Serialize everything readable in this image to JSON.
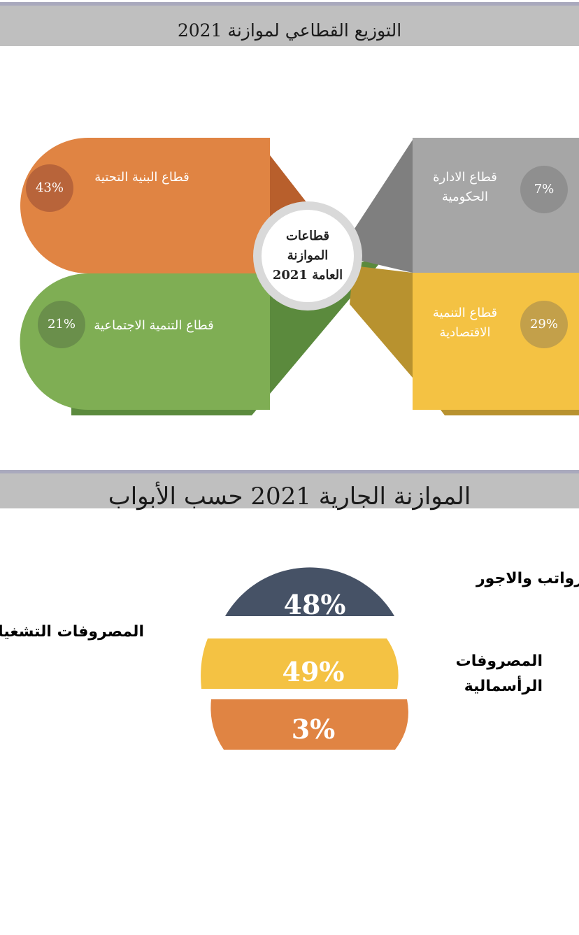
{
  "header1": {
    "title": "التوزيع القطاعي لموازنة 2021"
  },
  "header2": {
    "title": "الموازنة الجارية 2021 حسب الأبواب"
  },
  "colors": {
    "orange": "#e08443",
    "green": "#7fae54",
    "gray": "#a6a6a6",
    "yellow": "#f4c243",
    "navy": "#465266"
  },
  "center": {
    "line1": "قطاعات",
    "line2": "الموازنة",
    "line3": "العامة 2021"
  },
  "chart_data": [
    {
      "type": "infographic",
      "segments": [
        {
          "label": "قطاع البنية التحتية",
          "value": 43,
          "value_label": "43%"
        },
        {
          "label": "قطاع الادارة الحكومية",
          "label_line1": "قطاع الادارة",
          "label_line2": "الحكومية",
          "value": 7,
          "value_label": "7%"
        },
        {
          "label": "قطاع التنمية الاجتماعية",
          "value": 21,
          "value_label": "21%"
        },
        {
          "label": "قطاع التنمية الاقتصادية",
          "label_line1": "قطاع التنمية",
          "label_line2": "الاقتصادية",
          "value": 29,
          "value_label": "29%"
        }
      ]
    },
    {
      "type": "infographic",
      "segments": [
        {
          "label": "رواتب والاجور",
          "value": 48,
          "value_label": "48%"
        },
        {
          "label": "المصروفات التشغيلية",
          "value": 49,
          "value_label": "49%"
        },
        {
          "label": "المصروفات الرأسمالية",
          "label_line1": "المصروفات",
          "label_line2": "الرأسمالية",
          "value": 3,
          "value_label": "3%"
        }
      ]
    }
  ]
}
